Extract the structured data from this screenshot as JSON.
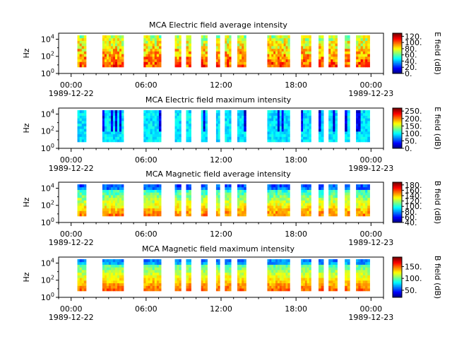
{
  "chart_data": [
    {
      "type": "heatmap",
      "title": "MCA  Electric field average intensity",
      "ylabel": "Hz",
      "colorbar_label": "E field (dB)",
      "colorbar_ticks": [
        "0.",
        "20.",
        "40.",
        "60.",
        "80.",
        "100.",
        "120."
      ],
      "clim": [
        0,
        130
      ],
      "yticks": [
        "10^0",
        "10^2",
        "10^4"
      ],
      "xticks": [
        "00:00",
        "06:00",
        "12:00",
        "18:00",
        "00:00"
      ],
      "xdates": [
        "1989-12-22",
        "1989-12-23"
      ],
      "base_level": 75,
      "segments": [
        [
          0.5,
          1.2
        ],
        [
          2.5,
          4.2
        ],
        [
          5.8,
          7.2
        ],
        [
          8.3,
          8.8
        ],
        [
          9.2,
          9.6
        ],
        [
          10.4,
          10.9
        ],
        [
          11.6,
          11.9
        ],
        [
          12.3,
          12.8
        ],
        [
          13.3,
          14.0
        ],
        [
          15.7,
          17.5
        ],
        [
          18.4,
          19.2
        ],
        [
          19.8,
          20.2
        ],
        [
          20.6,
          21.3
        ],
        [
          21.9,
          22.3
        ],
        [
          22.8,
          23.9
        ]
      ]
    },
    {
      "type": "heatmap",
      "title": "MCA  Electric field maximum intensity",
      "ylabel": "Hz",
      "colorbar_label": "E field (dB)",
      "colorbar_ticks": [
        "0.",
        "50.",
        "100.",
        "150.",
        "200.",
        "250."
      ],
      "clim": [
        0,
        270
      ],
      "yticks": [
        "10^0",
        "10^2",
        "10^4"
      ],
      "xticks": [
        "00:00",
        "06:00",
        "12:00",
        "18:00",
        "00:00"
      ],
      "xdates": [
        "1989-12-22",
        "1989-12-23"
      ],
      "base_level": 40,
      "segments": [
        [
          0.5,
          1.2
        ],
        [
          2.5,
          4.2
        ],
        [
          5.8,
          7.2
        ],
        [
          8.3,
          8.8
        ],
        [
          9.2,
          9.6
        ],
        [
          10.4,
          10.9
        ],
        [
          11.6,
          11.9
        ],
        [
          12.3,
          12.8
        ],
        [
          13.3,
          14.0
        ],
        [
          15.7,
          17.5
        ],
        [
          18.4,
          19.2
        ],
        [
          19.8,
          20.2
        ],
        [
          20.6,
          21.3
        ],
        [
          21.9,
          22.3
        ],
        [
          22.8,
          23.9
        ]
      ]
    },
    {
      "type": "heatmap",
      "title": "MCA  Magnetic field average intensity",
      "ylabel": "Hz",
      "colorbar_label": "B field (dB)",
      "colorbar_ticks": [
        "40.",
        "60.",
        "80.",
        "100.",
        "120.",
        "140.",
        "160.",
        "180."
      ],
      "clim": [
        40,
        190
      ],
      "yticks": [
        "10^0",
        "10^2",
        "10^4"
      ],
      "xticks": [
        "00:00",
        "06:00",
        "12:00",
        "18:00",
        "00:00"
      ],
      "xdates": [
        "1989-12-22",
        "1989-12-23"
      ],
      "base_level": 50,
      "segments": [
        [
          0.5,
          1.2
        ],
        [
          2.5,
          4.2
        ],
        [
          5.8,
          7.2
        ],
        [
          8.3,
          8.8
        ],
        [
          9.2,
          9.6
        ],
        [
          10.4,
          10.9
        ],
        [
          11.6,
          11.9
        ],
        [
          12.3,
          12.8
        ],
        [
          13.3,
          14.0
        ],
        [
          15.7,
          17.5
        ],
        [
          18.4,
          19.2
        ],
        [
          19.8,
          20.2
        ],
        [
          20.6,
          21.3
        ],
        [
          21.9,
          22.3
        ],
        [
          22.8,
          23.9
        ]
      ]
    },
    {
      "type": "heatmap",
      "title": "MCA  Magnetic field maximum intensity",
      "ylabel": "Hz",
      "colorbar_label": "B field (dB)",
      "colorbar_ticks": [
        "50.",
        "100.",
        "150."
      ],
      "clim": [
        20,
        190
      ],
      "yticks": [
        "10^0",
        "10^2",
        "10^4"
      ],
      "xticks": [
        "00:00",
        "06:00",
        "12:00",
        "18:00",
        "00:00"
      ],
      "xdates": [
        "1989-12-22",
        "1989-12-23"
      ],
      "base_level": 55,
      "segments": [
        [
          0.5,
          1.2
        ],
        [
          2.5,
          4.2
        ],
        [
          5.8,
          7.2
        ],
        [
          8.3,
          8.8
        ],
        [
          9.2,
          9.6
        ],
        [
          10.4,
          10.9
        ],
        [
          11.6,
          11.9
        ],
        [
          12.3,
          12.8
        ],
        [
          13.3,
          14.0
        ],
        [
          15.7,
          17.5
        ],
        [
          18.4,
          19.2
        ],
        [
          19.8,
          20.2
        ],
        [
          20.6,
          21.3
        ],
        [
          21.9,
          22.3
        ],
        [
          22.8,
          23.9
        ]
      ]
    }
  ]
}
